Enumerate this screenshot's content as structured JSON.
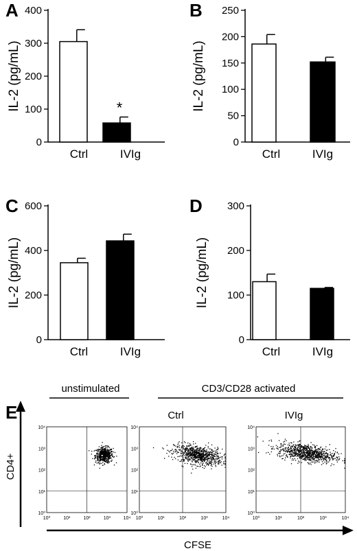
{
  "panels": [
    {
      "letter": "A",
      "chart_data": {
        "type": "bar",
        "categories": [
          "Ctrl",
          "IVIg"
        ],
        "values": [
          305,
          58
        ],
        "errors": [
          36,
          18
        ],
        "bar_colors": [
          "#ffffff",
          "#000000"
        ],
        "ylabel": "IL-2 (pg/mL)",
        "ylim": [
          0,
          400
        ],
        "yticks": [
          0,
          100,
          200,
          300,
          400
        ],
        "annotation": {
          "category": "IVIg",
          "text": "*"
        }
      }
    },
    {
      "letter": "B",
      "chart_data": {
        "type": "bar",
        "categories": [
          "Ctrl",
          "IVIg"
        ],
        "values": [
          186,
          152
        ],
        "errors": [
          18,
          9
        ],
        "bar_colors": [
          "#ffffff",
          "#000000"
        ],
        "ylabel": "IL-2 (pg/mL)",
        "ylim": [
          0,
          250
        ],
        "yticks": [
          0,
          50,
          100,
          150,
          200,
          250
        ]
      }
    },
    {
      "letter": "C",
      "chart_data": {
        "type": "bar",
        "categories": [
          "Ctrl",
          "IVIg"
        ],
        "values": [
          345,
          443
        ],
        "errors": [
          20,
          30
        ],
        "bar_colors": [
          "#ffffff",
          "#000000"
        ],
        "ylabel": "IL-2 (pg/mL)",
        "ylim": [
          0,
          600
        ],
        "yticks": [
          0,
          200,
          400,
          600
        ]
      }
    },
    {
      "letter": "D",
      "chart_data": {
        "type": "bar",
        "categories": [
          "Ctrl",
          "IVIg"
        ],
        "values": [
          130,
          115
        ],
        "errors": [
          17,
          2
        ],
        "bar_colors": [
          "#ffffff",
          "#000000"
        ],
        "ylabel": "IL-2 (pg/mL)",
        "ylim": [
          0,
          300
        ],
        "yticks": [
          0,
          100,
          200,
          300
        ]
      }
    }
  ],
  "flow": {
    "letter": "E",
    "group_unstimulated": "unstimulated",
    "group_activated": "CD3/CD28 activated",
    "plot_titles": [
      "",
      "Ctrl",
      "IVIg"
    ],
    "y_axis_label": "CD4+",
    "x_axis_label": "CFSE",
    "axis_tick_labels": [
      "10⁰",
      "10¹",
      "10²",
      "10³",
      "10⁴"
    ],
    "log_range": [
      0,
      4
    ],
    "quadrant_gate": {
      "x": 2.0,
      "y": 1.0
    },
    "chart_data": [
      {
        "type": "scatter",
        "name": "unstimulated",
        "population_center": [
          2.85,
          2.7
        ],
        "spread": [
          0.22,
          0.18
        ],
        "events": 520
      },
      {
        "type": "scatter",
        "name": "Ctrl",
        "population_center": [
          2.7,
          2.7
        ],
        "spread": [
          0.55,
          0.22
        ],
        "events": 800
      },
      {
        "type": "scatter",
        "name": "IVIg",
        "population_center": [
          2.25,
          2.8
        ],
        "spread": [
          0.65,
          0.2
        ],
        "events": 850
      }
    ]
  }
}
